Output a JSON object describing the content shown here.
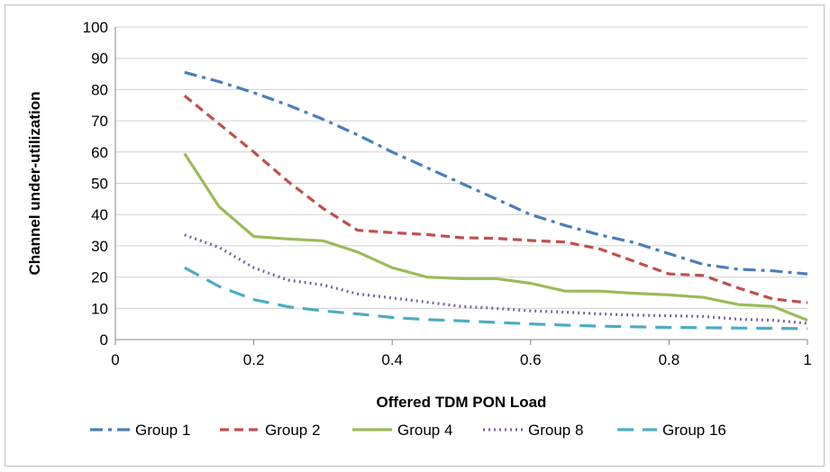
{
  "chart_data": {
    "type": "line",
    "title": "",
    "xlabel": "Offered TDM PON Load",
    "ylabel": "Channel under-utilization",
    "xlim": [
      0,
      1
    ],
    "ylim": [
      0,
      100
    ],
    "xticks": [
      0,
      0.2,
      0.4,
      0.6,
      0.8,
      1
    ],
    "yticks": [
      0,
      10,
      20,
      30,
      40,
      50,
      60,
      70,
      80,
      90,
      100
    ],
    "xtick_labels": [
      "0",
      "0.2",
      "0.4",
      "0.6",
      "0.8",
      "1"
    ],
    "ytick_labels": [
      "0",
      "10",
      "20",
      "30",
      "40",
      "50",
      "60",
      "70",
      "80",
      "90",
      "100"
    ],
    "grid": "horizontal",
    "legend_position": "bottom",
    "x": [
      0.1,
      0.15,
      0.2,
      0.25,
      0.3,
      0.35,
      0.4,
      0.45,
      0.5,
      0.55,
      0.6,
      0.65,
      0.7,
      0.75,
      0.8,
      0.85,
      0.9,
      0.95,
      1.0
    ],
    "series": [
      {
        "name": "Group 1",
        "color": "#4a7ebb",
        "dash": "dashdot",
        "values": [
          85.5,
          82.5,
          79,
          75,
          70.5,
          65.5,
          60,
          55,
          50,
          45,
          40,
          36.5,
          33.5,
          31,
          27.5,
          24,
          22.5,
          22,
          21
        ]
      },
      {
        "name": "Group 2",
        "color": "#c0504d",
        "dash": "dash",
        "values": [
          78,
          69,
          60,
          50.5,
          42,
          35,
          34.2,
          33.6,
          32.6,
          32.4,
          31.7,
          31.2,
          29,
          25,
          21,
          20.5,
          16.5,
          13,
          11.8
        ]
      },
      {
        "name": "Group 4",
        "color": "#9bbb59",
        "dash": "solid",
        "values": [
          59.5,
          42.5,
          33,
          32.2,
          31.6,
          28,
          23,
          20,
          19.5,
          19.5,
          18,
          15.5,
          15.5,
          14.8,
          14.3,
          13.5,
          11.2,
          10.6,
          6.2
        ]
      },
      {
        "name": "Group 8",
        "color": "#8064a2",
        "dash": "dot",
        "values": [
          33.5,
          29.5,
          23,
          19,
          17.5,
          14.6,
          13.3,
          12,
          10.6,
          10,
          9.2,
          8.8,
          8.2,
          7.8,
          7.6,
          7.4,
          6.5,
          6.2,
          5.2
        ]
      },
      {
        "name": "Group 16",
        "color": "#4bacc6",
        "dash": "longdash",
        "values": [
          23,
          17,
          12.8,
          10.5,
          9.2,
          8.2,
          7.1,
          6.4,
          6,
          5.5,
          5,
          4.6,
          4.3,
          4.1,
          3.9,
          3.8,
          3.7,
          3.6,
          3.5
        ]
      }
    ]
  }
}
